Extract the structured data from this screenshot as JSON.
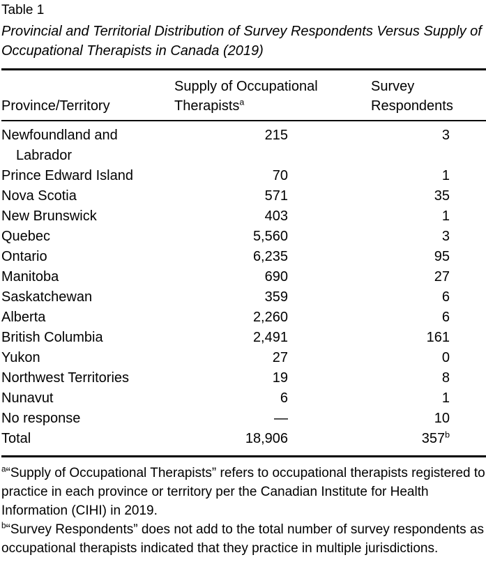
{
  "table": {
    "label": "Table 1",
    "caption": "Provincial and Territorial Distribution of Survey Respondents Versus Supply of Occupational Therapists in Canada (2019)",
    "columns": {
      "province": "Province/Territory",
      "supply_line1": "Supply of Occupational",
      "supply_line2": "Therapists",
      "supply_sup": "a",
      "respondents_line1": "Survey",
      "respondents_line2": "Respondents"
    },
    "rows": [
      {
        "province_lines": [
          "Newfoundland and",
          "Labrador"
        ],
        "supply": "215",
        "respondents": "3"
      },
      {
        "province_lines": [
          "Prince Edward Island"
        ],
        "supply": "70",
        "respondents": "1"
      },
      {
        "province_lines": [
          "Nova Scotia"
        ],
        "supply": "571",
        "respondents": "35"
      },
      {
        "province_lines": [
          "New Brunswick"
        ],
        "supply": "403",
        "respondents": "1"
      },
      {
        "province_lines": [
          "Quebec"
        ],
        "supply": "5,560",
        "respondents": "3"
      },
      {
        "province_lines": [
          "Ontario"
        ],
        "supply": "6,235",
        "respondents": "95"
      },
      {
        "province_lines": [
          "Manitoba"
        ],
        "supply": "690",
        "respondents": "27"
      },
      {
        "province_lines": [
          "Saskatchewan"
        ],
        "supply": "359",
        "respondents": "6"
      },
      {
        "province_lines": [
          "Alberta"
        ],
        "supply": "2,260",
        "respondents": "6"
      },
      {
        "province_lines": [
          "British Columbia"
        ],
        "supply": "2,491",
        "respondents": "161"
      },
      {
        "province_lines": [
          "Yukon"
        ],
        "supply": "27",
        "respondents": "0"
      },
      {
        "province_lines": [
          "Northwest Territories"
        ],
        "supply": "19",
        "respondents": "8"
      },
      {
        "province_lines": [
          "Nunavut"
        ],
        "supply": "6",
        "respondents": "1"
      },
      {
        "province_lines": [
          "No response"
        ],
        "supply": "—",
        "respondents": "10"
      },
      {
        "province_lines": [
          "Total"
        ],
        "supply": "18,906",
        "respondents": "357",
        "respondents_sup": "b"
      }
    ],
    "footnotes": [
      {
        "sup": "a",
        "text": "“Supply of Occupational Therapists” refers to occupational therapists registered to practice in each province or territory per the Canadian Institute for Health Information (CIHI) in 2019."
      },
      {
        "sup": "b",
        "text": "“Survey Respondents” does not add to the total number of survey respondents as occupational therapists indicated that they practice in multiple jurisdictions."
      }
    ],
    "colors": {
      "text": "#000000",
      "rule": "#000000",
      "background": "#ffffff"
    }
  }
}
